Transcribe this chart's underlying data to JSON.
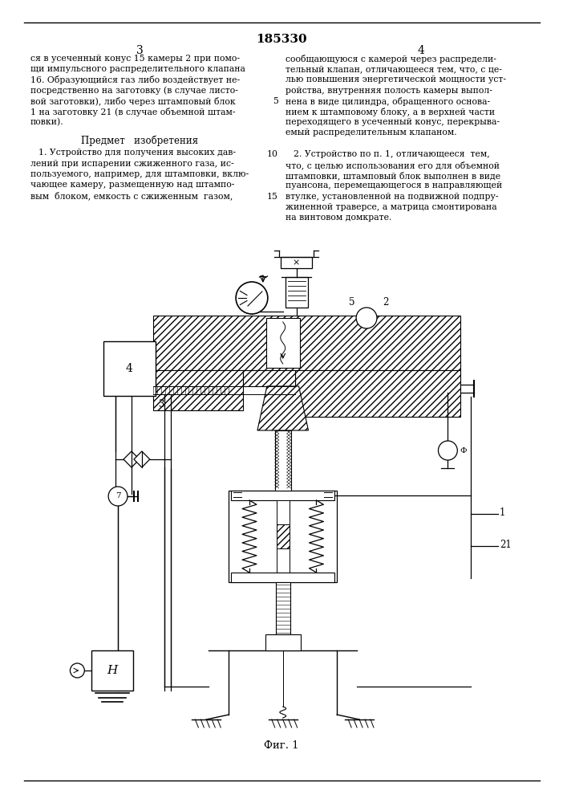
{
  "patent_number": "185330",
  "page_left": "3",
  "page_right": "4",
  "left_col_lines": [
    "ся в усеченный конус 15 камеры 2 при помо-",
    "щи импульсного распределительного клапана",
    "16. Образующийся газ либо воздействует не-",
    "посредственно на заготовку (в случае листо-",
    "вой заготовки), либо через штамповый блок",
    "1 на заготовку 21 (в случае объемной штам-",
    "повки)."
  ],
  "right_col_lines": [
    "сообщающуюся с камерой через распредели-",
    "тельный клапан, отличающееся тем, что, с це-",
    "лью повышения энергетической мощности уст-",
    "ройства, внутренняя полость камеры выпол-",
    "нена в виде цилиндра, обращенного основа-",
    "нием к штамповому блоку, а в верхней части",
    "переходящего в усеченный конус, перекрыва-",
    "емый распределительным клапаном."
  ],
  "subject_title": "Предмет   изобретения",
  "claim1_lines": [
    "1. Устройство для получения высоких дав-",
    "лений при испарении сжиженного газа, ис-",
    "пользуемого, например, для штамповки, вклю-",
    "чающее камеру, размещенную над штампо-",
    "вым  блоком, емкость с сжиженным  газом,"
  ],
  "claim2_lines": [
    "2. Устройство по п. 1, отличающееся  тем,",
    "что, с целью использования его для объемной",
    "штамповки, штамповый блок выполнен в виде",
    "пуансона, перемещающегося в направляющей",
    "втулке, установленной на подвижной подпру-",
    "жиненной траверсе, а матрица смонтирована",
    "на винтовом домкрате."
  ],
  "fig_caption": "Фиг. 1",
  "bg_color": "#ffffff"
}
